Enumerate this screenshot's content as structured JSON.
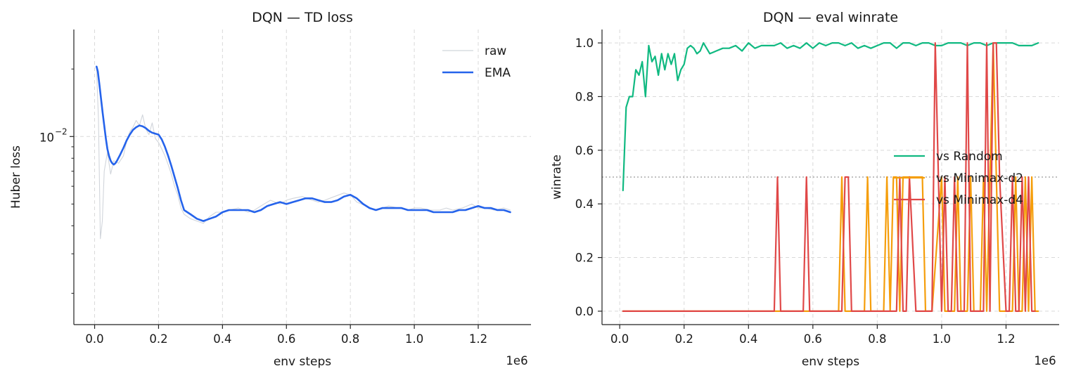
{
  "chart_data": [
    {
      "type": "line",
      "title": "DQN — TD loss",
      "xlabel": "env steps",
      "ylabel": "Huber loss",
      "x_offset_label": "1e6",
      "yscale": "log",
      "xlim": [
        -0.065,
        1.365
      ],
      "ylim": [
        0.00145,
        0.03
      ],
      "x_ticks": [
        0.0,
        0.2,
        0.4,
        0.6,
        0.8,
        1.0,
        1.2
      ],
      "x_tick_labels": [
        "0.0",
        "0.2",
        "0.4",
        "0.6",
        "0.8",
        "1.0",
        "1.2"
      ],
      "y_major_ticks": [
        0.01
      ],
      "y_minor_ticks": [
        0.002,
        0.003,
        0.004,
        0.005,
        0.006,
        0.007,
        0.008,
        0.009,
        0.02
      ],
      "y_tick_label_base": "10",
      "y_tick_label_exp": "−2",
      "grid": true,
      "legend_position": "top-right",
      "series": [
        {
          "name": "raw",
          "color": "#d1d5db",
          "x": [
            0.006,
            0.012,
            0.018,
            0.024,
            0.03,
            0.04,
            0.05,
            0.06,
            0.075,
            0.09,
            0.1,
            0.11,
            0.12,
            0.13,
            0.14,
            0.15,
            0.16,
            0.17,
            0.18,
            0.19,
            0.2,
            0.21,
            0.22,
            0.23,
            0.24,
            0.25,
            0.26,
            0.27,
            0.28,
            0.3,
            0.32,
            0.34,
            0.36,
            0.38,
            0.4,
            0.42,
            0.45,
            0.48,
            0.5,
            0.52,
            0.55,
            0.58,
            0.6,
            0.62,
            0.65,
            0.68,
            0.7,
            0.72,
            0.75,
            0.78,
            0.8,
            0.82,
            0.85,
            0.88,
            0.9,
            0.92,
            0.95,
            0.98,
            1.0,
            1.02,
            1.05,
            1.08,
            1.1,
            1.12,
            1.15,
            1.18,
            1.2,
            1.22,
            1.25,
            1.28,
            1.3
          ],
          "values": [
            0.02,
            0.012,
            0.0035,
            0.0042,
            0.007,
            0.0085,
            0.0068,
            0.0078,
            0.0076,
            0.0082,
            0.0095,
            0.0105,
            0.011,
            0.0118,
            0.0112,
            0.0125,
            0.0108,
            0.0102,
            0.0115,
            0.0098,
            0.0094,
            0.0088,
            0.0082,
            0.0075,
            0.0068,
            0.006,
            0.0055,
            0.0048,
            0.0045,
            0.0043,
            0.0042,
            0.0041,
            0.0044,
            0.0046,
            0.0046,
            0.0047,
            0.0048,
            0.0046,
            0.0047,
            0.0049,
            0.0052,
            0.005,
            0.0052,
            0.0053,
            0.0054,
            0.0052,
            0.0051,
            0.0052,
            0.0054,
            0.0056,
            0.0055,
            0.0051,
            0.0049,
            0.0047,
            0.0048,
            0.0049,
            0.0048,
            0.0047,
            0.0048,
            0.0048,
            0.0047,
            0.0047,
            0.0048,
            0.0047,
            0.0048,
            0.005,
            0.0048,
            0.0048,
            0.0047,
            0.0048,
            0.0047
          ]
        },
        {
          "name": "EMA",
          "color": "#2563eb",
          "x": [
            0.006,
            0.01,
            0.015,
            0.02,
            0.025,
            0.03,
            0.035,
            0.04,
            0.045,
            0.05,
            0.055,
            0.06,
            0.065,
            0.07,
            0.08,
            0.09,
            0.1,
            0.11,
            0.12,
            0.13,
            0.14,
            0.15,
            0.16,
            0.17,
            0.18,
            0.19,
            0.2,
            0.21,
            0.22,
            0.23,
            0.24,
            0.25,
            0.26,
            0.27,
            0.28,
            0.3,
            0.32,
            0.34,
            0.36,
            0.38,
            0.4,
            0.42,
            0.44,
            0.46,
            0.48,
            0.5,
            0.52,
            0.54,
            0.56,
            0.58,
            0.6,
            0.62,
            0.64,
            0.66,
            0.68,
            0.7,
            0.72,
            0.74,
            0.76,
            0.78,
            0.8,
            0.82,
            0.84,
            0.86,
            0.88,
            0.9,
            0.92,
            0.94,
            0.96,
            0.98,
            1.0,
            1.02,
            1.04,
            1.06,
            1.08,
            1.1,
            1.12,
            1.14,
            1.16,
            1.18,
            1.2,
            1.22,
            1.24,
            1.26,
            1.28,
            1.3
          ],
          "values": [
            0.0205,
            0.0195,
            0.017,
            0.0148,
            0.0128,
            0.0112,
            0.0098,
            0.0088,
            0.0082,
            0.0078,
            0.0076,
            0.0075,
            0.0076,
            0.0078,
            0.0083,
            0.0089,
            0.0096,
            0.0102,
            0.0107,
            0.011,
            0.0112,
            0.0111,
            0.0109,
            0.0106,
            0.0104,
            0.0103,
            0.0102,
            0.0097,
            0.009,
            0.0082,
            0.0074,
            0.0066,
            0.0059,
            0.0052,
            0.0047,
            0.0045,
            0.0043,
            0.0042,
            0.0043,
            0.0044,
            0.0046,
            0.0047,
            0.0047,
            0.0047,
            0.0047,
            0.0046,
            0.0047,
            0.0049,
            0.005,
            0.0051,
            0.005,
            0.0051,
            0.0052,
            0.0053,
            0.0053,
            0.0052,
            0.0051,
            0.0051,
            0.0052,
            0.0054,
            0.0055,
            0.0053,
            0.005,
            0.0048,
            0.0047,
            0.0048,
            0.0048,
            0.0048,
            0.0048,
            0.0047,
            0.0047,
            0.0047,
            0.0047,
            0.0046,
            0.0046,
            0.0046,
            0.0046,
            0.0047,
            0.0047,
            0.0048,
            0.0049,
            0.0048,
            0.0048,
            0.0047,
            0.0047,
            0.0046
          ]
        }
      ]
    },
    {
      "type": "line",
      "title": "DQN — eval winrate",
      "xlabel": "env steps",
      "ylabel": "winrate",
      "x_offset_label": "1e6",
      "xlim": [
        -0.055,
        1.365
      ],
      "ylim": [
        -0.05,
        1.05
      ],
      "x_ticks": [
        0.0,
        0.2,
        0.4,
        0.6,
        0.8,
        1.0,
        1.2
      ],
      "x_tick_labels": [
        "0.0",
        "0.2",
        "0.4",
        "0.6",
        "0.8",
        "1.0",
        "1.2"
      ],
      "y_ticks": [
        0.0,
        0.2,
        0.4,
        0.6,
        0.8,
        1.0
      ],
      "y_tick_labels": [
        "0.0",
        "0.2",
        "0.4",
        "0.6",
        "0.8",
        "1.0"
      ],
      "grid": true,
      "reference_line_y": 0.5,
      "legend_position": "center-right",
      "series": [
        {
          "name": "vs Random",
          "color": "#10b981",
          "x": [
            0.01,
            0.02,
            0.03,
            0.04,
            0.05,
            0.06,
            0.07,
            0.08,
            0.09,
            0.1,
            0.11,
            0.12,
            0.13,
            0.14,
            0.15,
            0.16,
            0.17,
            0.18,
            0.19,
            0.2,
            0.21,
            0.22,
            0.23,
            0.24,
            0.25,
            0.26,
            0.28,
            0.3,
            0.32,
            0.34,
            0.36,
            0.38,
            0.4,
            0.42,
            0.44,
            0.46,
            0.48,
            0.5,
            0.52,
            0.54,
            0.56,
            0.58,
            0.6,
            0.62,
            0.64,
            0.66,
            0.68,
            0.7,
            0.72,
            0.74,
            0.76,
            0.78,
            0.8,
            0.82,
            0.84,
            0.86,
            0.88,
            0.9,
            0.92,
            0.94,
            0.96,
            0.98,
            1.0,
            1.02,
            1.04,
            1.06,
            1.08,
            1.1,
            1.12,
            1.14,
            1.16,
            1.18,
            1.2,
            1.22,
            1.24,
            1.26,
            1.28,
            1.3
          ],
          "values": [
            0.45,
            0.76,
            0.8,
            0.8,
            0.9,
            0.88,
            0.93,
            0.8,
            0.99,
            0.93,
            0.95,
            0.88,
            0.96,
            0.9,
            0.96,
            0.92,
            0.96,
            0.86,
            0.9,
            0.92,
            0.98,
            0.99,
            0.98,
            0.96,
            0.97,
            1.0,
            0.96,
            0.97,
            0.98,
            0.98,
            0.99,
            0.97,
            1.0,
            0.98,
            0.99,
            0.99,
            0.99,
            1.0,
            0.98,
            0.99,
            0.98,
            1.0,
            0.98,
            1.0,
            0.99,
            1.0,
            1.0,
            0.99,
            1.0,
            0.98,
            0.99,
            0.98,
            0.99,
            1.0,
            1.0,
            0.98,
            1.0,
            1.0,
            0.99,
            1.0,
            1.0,
            0.99,
            0.99,
            1.0,
            1.0,
            1.0,
            0.99,
            1.0,
            1.0,
            0.99,
            1.0,
            1.0,
            1.0,
            1.0,
            0.99,
            0.99,
            0.99,
            1.0
          ]
        },
        {
          "name": "vs Minimax-d2",
          "color": "#f59e0b",
          "x": [
            0.01,
            0.68,
            0.69,
            0.7,
            0.76,
            0.77,
            0.78,
            0.82,
            0.83,
            0.84,
            0.85,
            0.86,
            0.87,
            0.88,
            0.9,
            0.92,
            0.94,
            0.95,
            0.96,
            0.97,
            1.0,
            1.01,
            1.02,
            1.04,
            1.05,
            1.06,
            1.08,
            1.09,
            1.1,
            1.12,
            1.13,
            1.14,
            1.15,
            1.16,
            1.17,
            1.18,
            1.19,
            1.2,
            1.22,
            1.23,
            1.24,
            1.25,
            1.26,
            1.27,
            1.28,
            1.29,
            1.3
          ],
          "values": [
            0.0,
            0.0,
            0.5,
            0.0,
            0.0,
            0.5,
            0.0,
            0.0,
            0.5,
            0.0,
            0.5,
            0.5,
            0.0,
            0.5,
            0.5,
            0.5,
            0.5,
            0.0,
            0.0,
            0.0,
            0.5,
            0.0,
            0.0,
            0.0,
            0.5,
            0.0,
            0.0,
            0.5,
            0.0,
            0.0,
            0.5,
            0.0,
            0.5,
            1.0,
            0.5,
            0.0,
            0.0,
            0.0,
            0.0,
            0.5,
            0.0,
            0.0,
            0.5,
            0.0,
            0.5,
            0.0,
            0.0
          ]
        },
        {
          "name": "vs Minimax-d4",
          "color": "#e04848",
          "x": [
            0.01,
            0.48,
            0.49,
            0.5,
            0.57,
            0.58,
            0.59,
            0.69,
            0.7,
            0.71,
            0.72,
            0.86,
            0.87,
            0.88,
            0.89,
            0.9,
            0.92,
            0.93,
            0.97,
            0.98,
            0.99,
            1.0,
            1.01,
            1.02,
            1.03,
            1.04,
            1.05,
            1.07,
            1.08,
            1.09,
            1.11,
            1.13,
            1.14,
            1.15,
            1.16,
            1.17,
            1.18,
            1.2,
            1.21,
            1.22,
            1.23,
            1.24,
            1.25,
            1.26,
            1.27,
            1.28,
            1.29
          ],
          "values": [
            0.0,
            0.0,
            0.5,
            0.0,
            0.0,
            0.5,
            0.0,
            0.0,
            0.5,
            0.5,
            0.0,
            0.0,
            0.5,
            0.0,
            0.0,
            0.5,
            0.0,
            0.0,
            0.0,
            1.0,
            0.5,
            0.0,
            0.5,
            0.0,
            0.0,
            0.5,
            0.0,
            0.0,
            1.0,
            0.0,
            0.0,
            0.0,
            1.0,
            0.0,
            1.0,
            1.0,
            0.5,
            0.0,
            0.0,
            0.5,
            0.0,
            0.0,
            0.5,
            0.0,
            0.5,
            0.0,
            0.0
          ]
        }
      ]
    }
  ]
}
